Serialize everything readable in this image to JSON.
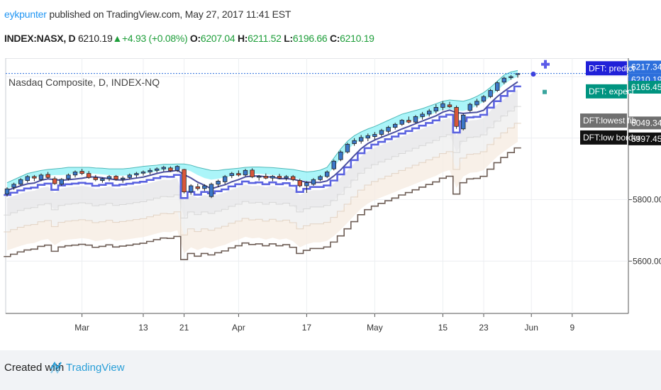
{
  "header": {
    "author": "eykpunter",
    "published_text": " published on TradingView.com, May 27, 2017 11:41 EST",
    "symbol": "INDEX:NASX, D",
    "last": "6210.19",
    "change": "+4.93 (+0.08%)",
    "open_label": "O:",
    "open": "6207.04",
    "high_label": "H:",
    "high": "6211.52",
    "low_label": "L:",
    "low": "6196.66",
    "close_label": "C:",
    "close": "6210.19"
  },
  "footer": {
    "created_with": "Created with",
    "brand": "TradingView"
  },
  "colors": {
    "candle_up": "#3b77c9",
    "candle_down": "#d9573a",
    "upper_band_fill": "#8ff1f7",
    "inner_line": "#4b4f9f",
    "lower_line": "#5a62e0",
    "brown_line": "#6d5d55",
    "predict_tag": "#2020d8",
    "expect_tag": "#009480",
    "price_tag": "#2d6fdc"
  },
  "chart_data": {
    "type": "candlestick",
    "title": "Nasdaq Composite, D, INDEX-NQ",
    "ylim": [
      5430,
      6260
    ],
    "x_ticks": [
      {
        "label": "Mar",
        "i": 11
      },
      {
        "label": "13",
        "i": 20
      },
      {
        "label": "21",
        "i": 26
      },
      {
        "label": "Apr",
        "i": 34
      },
      {
        "label": "17",
        "i": 44
      },
      {
        "label": "May",
        "i": 54
      },
      {
        "label": "15",
        "i": 64
      },
      {
        "label": "23",
        "i": 70
      },
      {
        "label": "Jun",
        "i": 77
      },
      {
        "label": "9",
        "i": 83
      }
    ],
    "y_ticks": [
      5600.0,
      5800.0
    ],
    "price_tags": [
      {
        "label": "6217.34",
        "value": 6217.34,
        "kind": "upper"
      },
      {
        "label": "6210.19",
        "value": 6210.19,
        "kind": "last"
      },
      {
        "label": "6165.45",
        "value": 6165.45,
        "kind": "expect"
      },
      {
        "label": "6049.34",
        "value": 6049.34,
        "kind": "fib"
      },
      {
        "label": "5997.45",
        "value": 5997.45,
        "kind": "low"
      }
    ],
    "dft_labels": [
      {
        "label": "DFT: predict",
        "value": 6227,
        "kind": "predict"
      },
      {
        "label": "DFT: expect",
        "value": 6152,
        "kind": "expect"
      },
      {
        "label": "DFT:lowest fib",
        "value": 6057,
        "kind": "fib"
      },
      {
        "label": "DFT:low border",
        "value": 6002,
        "kind": "low"
      }
    ],
    "candles": [
      [
        5818,
        5840,
        5810,
        5835
      ],
      [
        5840,
        5855,
        5832,
        5850
      ],
      [
        5850,
        5870,
        5845,
        5865
      ],
      [
        5862,
        5880,
        5855,
        5875
      ],
      [
        5875,
        5880,
        5860,
        5870
      ],
      [
        5865,
        5885,
        5860,
        5880
      ],
      [
        5882,
        5890,
        5868,
        5872
      ],
      [
        5868,
        5875,
        5848,
        5852
      ],
      [
        5850,
        5870,
        5845,
        5866
      ],
      [
        5868,
        5885,
        5862,
        5880
      ],
      [
        5880,
        5895,
        5872,
        5890
      ],
      [
        5892,
        5900,
        5880,
        5885
      ],
      [
        5885,
        5893,
        5868,
        5872
      ],
      [
        5872,
        5880,
        5860,
        5865
      ],
      [
        5862,
        5872,
        5855,
        5868
      ],
      [
        5868,
        5880,
        5860,
        5875
      ],
      [
        5876,
        5880,
        5862,
        5866
      ],
      [
        5866,
        5876,
        5855,
        5870
      ],
      [
        5872,
        5885,
        5866,
        5880
      ],
      [
        5880,
        5890,
        5872,
        5885
      ],
      [
        5886,
        5895,
        5878,
        5890
      ],
      [
        5890,
        5902,
        5882,
        5895
      ],
      [
        5895,
        5905,
        5888,
        5900
      ],
      [
        5900,
        5910,
        5892,
        5905
      ],
      [
        5903,
        5908,
        5890,
        5894
      ],
      [
        5895,
        5912,
        5890,
        5908
      ],
      [
        5898,
        5900,
        5820,
        5825
      ],
      [
        5825,
        5850,
        5816,
        5845
      ],
      [
        5842,
        5852,
        5830,
        5836
      ],
      [
        5836,
        5850,
        5828,
        5845
      ],
      [
        5810,
        5855,
        5805,
        5850
      ],
      [
        5850,
        5865,
        5840,
        5860
      ],
      [
        5858,
        5880,
        5850,
        5875
      ],
      [
        5878,
        5890,
        5870,
        5885
      ],
      [
        5885,
        5895,
        5875,
        5880
      ],
      [
        5880,
        5900,
        5875,
        5895
      ],
      [
        5896,
        5902,
        5870,
        5874
      ],
      [
        5873,
        5880,
        5862,
        5876
      ],
      [
        5876,
        5885,
        5866,
        5870
      ],
      [
        5870,
        5880,
        5860,
        5876
      ],
      [
        5876,
        5884,
        5866,
        5870
      ],
      [
        5870,
        5880,
        5862,
        5875
      ],
      [
        5875,
        5880,
        5860,
        5865
      ],
      [
        5862,
        5868,
        5840,
        5845
      ],
      [
        5845,
        5860,
        5822,
        5855
      ],
      [
        5850,
        5870,
        5845,
        5865
      ],
      [
        5865,
        5880,
        5860,
        5875
      ],
      [
        5875,
        5895,
        5870,
        5890
      ],
      [
        5900,
        5930,
        5895,
        5925
      ],
      [
        5930,
        5960,
        5925,
        5955
      ],
      [
        5955,
        5985,
        5950,
        5980
      ],
      [
        5982,
        6000,
        5975,
        5992
      ],
      [
        5990,
        6010,
        5982,
        6002
      ],
      [
        6000,
        6015,
        5990,
        6008
      ],
      [
        6005,
        6020,
        5995,
        6012
      ],
      [
        6012,
        6030,
        6005,
        6025
      ],
      [
        6022,
        6040,
        6015,
        6035
      ],
      [
        6035,
        6050,
        6028,
        6045
      ],
      [
        6045,
        6062,
        6040,
        6058
      ],
      [
        6058,
        6070,
        6048,
        6052
      ],
      [
        6052,
        6075,
        6048,
        6070
      ],
      [
        6070,
        6085,
        6060,
        6078
      ],
      [
        6078,
        6095,
        6070,
        6088
      ],
      [
        6088,
        6110,
        6080,
        6100
      ],
      [
        6100,
        6120,
        6090,
        6112
      ],
      [
        6108,
        6118,
        6098,
        6102
      ],
      [
        6100,
        6106,
        6030,
        6038
      ],
      [
        6030,
        6080,
        6025,
        6075
      ],
      [
        6090,
        6115,
        6085,
        6110
      ],
      [
        6108,
        6128,
        6100,
        6120
      ],
      [
        6120,
        6140,
        6115,
        6135
      ],
      [
        6135,
        6160,
        6130,
        6155
      ],
      [
        6155,
        6185,
        6150,
        6180
      ],
      [
        6182,
        6200,
        6175,
        6195
      ],
      [
        6198,
        6205,
        6190,
        6200
      ],
      [
        6207.04,
        6211.52,
        6196.66,
        6210.19
      ]
    ],
    "upper_band": [
      [
        5835,
        5855
      ],
      [
        5845,
        5865
      ],
      [
        5858,
        5875
      ],
      [
        5868,
        5885
      ],
      [
        5872,
        5890
      ],
      [
        5875,
        5895
      ],
      [
        5878,
        5898
      ],
      [
        5880,
        5900
      ],
      [
        5880,
        5902
      ],
      [
        5882,
        5905
      ],
      [
        5885,
        5905
      ],
      [
        5886,
        5905
      ],
      [
        5886,
        5905
      ],
      [
        5884,
        5903
      ],
      [
        5882,
        5902
      ],
      [
        5880,
        5900
      ],
      [
        5878,
        5900
      ],
      [
        5878,
        5900
      ],
      [
        5880,
        5902
      ],
      [
        5882,
        5905
      ],
      [
        5885,
        5908
      ],
      [
        5888,
        5910
      ],
      [
        5892,
        5912
      ],
      [
        5896,
        5915
      ],
      [
        5898,
        5915
      ],
      [
        5900,
        5916
      ],
      [
        5900,
        5916
      ],
      [
        5892,
        5912
      ],
      [
        5880,
        5905
      ],
      [
        5870,
        5900
      ],
      [
        5865,
        5895
      ],
      [
        5868,
        5895
      ],
      [
        5872,
        5898
      ],
      [
        5876,
        5900
      ],
      [
        5880,
        5902
      ],
      [
        5882,
        5905
      ],
      [
        5884,
        5906
      ],
      [
        5884,
        5906
      ],
      [
        5882,
        5905
      ],
      [
        5880,
        5904
      ],
      [
        5878,
        5902
      ],
      [
        5876,
        5900
      ],
      [
        5872,
        5898
      ],
      [
        5866,
        5894
      ],
      [
        5860,
        5890
      ],
      [
        5862,
        5892
      ],
      [
        5868,
        5896
      ],
      [
        5880,
        5905
      ],
      [
        5905,
        5935
      ],
      [
        5935,
        5965
      ],
      [
        5962,
        5990
      ],
      [
        5982,
        6008
      ],
      [
        5995,
        6020
      ],
      [
        6004,
        6030
      ],
      [
        6010,
        6038
      ],
      [
        6018,
        6048
      ],
      [
        6028,
        6058
      ],
      [
        6038,
        6068
      ],
      [
        6048,
        6078
      ],
      [
        6054,
        6084
      ],
      [
        6060,
        6090
      ],
      [
        6066,
        6096
      ],
      [
        6074,
        6104
      ],
      [
        6084,
        6112
      ],
      [
        6092,
        6120
      ],
      [
        6094,
        6124
      ],
      [
        6090,
        6122
      ],
      [
        6088,
        6120
      ],
      [
        6095,
        6126
      ],
      [
        6105,
        6136
      ],
      [
        6118,
        6148
      ],
      [
        6135,
        6165
      ],
      [
        6155,
        6185
      ],
      [
        6175,
        6205
      ],
      [
        6190,
        6215
      ],
      [
        6200,
        6220
      ]
    ]
  }
}
